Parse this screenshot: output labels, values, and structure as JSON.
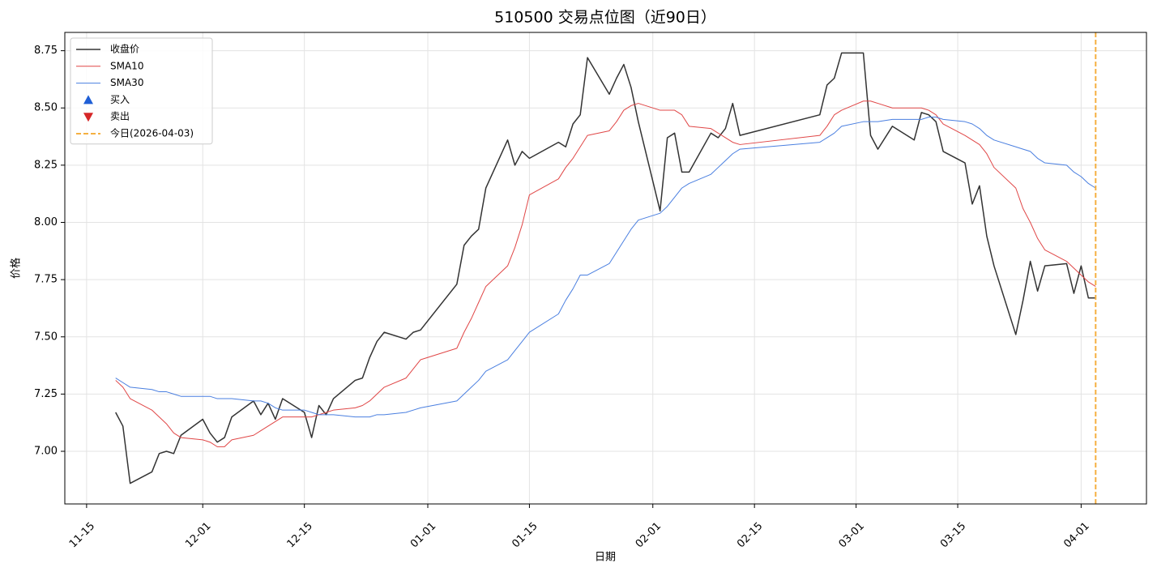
{
  "chart_data": {
    "type": "line",
    "title": "510500 交易点位图（近90日）",
    "xlabel": "日期",
    "ylabel": "价格",
    "x": [
      "11-19",
      "11-20",
      "11-21",
      "11-24",
      "11-25",
      "11-26",
      "11-27",
      "11-28",
      "12-01",
      "12-02",
      "12-03",
      "12-04",
      "12-05",
      "12-08",
      "12-09",
      "12-10",
      "12-11",
      "12-12",
      "12-15",
      "12-16",
      "12-17",
      "12-18",
      "12-19",
      "12-22",
      "12-23",
      "12-24",
      "12-25",
      "12-26",
      "12-29",
      "12-30",
      "12-31",
      "01-05",
      "01-06",
      "01-07",
      "01-08",
      "01-09",
      "01-12",
      "01-13",
      "01-14",
      "01-15",
      "01-19",
      "01-20",
      "01-21",
      "01-22",
      "01-23",
      "01-26",
      "01-27",
      "01-28",
      "01-29",
      "01-30",
      "02-02",
      "02-03",
      "02-04",
      "02-05",
      "02-06",
      "02-09",
      "02-10",
      "02-11",
      "02-12",
      "02-13",
      "02-24",
      "02-25",
      "02-26",
      "02-27",
      "03-02",
      "03-03",
      "03-04",
      "03-06",
      "03-09",
      "03-10",
      "03-11",
      "03-12",
      "03-13",
      "03-16",
      "03-17",
      "03-18",
      "03-19",
      "03-20",
      "03-23",
      "03-24",
      "03-25",
      "03-26",
      "03-27",
      "03-30",
      "03-31",
      "04-01",
      "04-02",
      "04-03"
    ],
    "series": [
      {
        "name": "收盘价",
        "color": "#333333",
        "width": 1.5,
        "values": [
          7.17,
          7.11,
          6.86,
          6.91,
          6.99,
          7.0,
          6.99,
          7.07,
          7.14,
          7.08,
          7.04,
          7.06,
          7.15,
          7.22,
          7.16,
          7.21,
          7.14,
          7.23,
          7.17,
          7.06,
          7.2,
          7.16,
          7.23,
          7.31,
          7.32,
          7.41,
          7.48,
          7.52,
          7.49,
          7.52,
          7.53,
          7.73,
          7.9,
          7.94,
          7.97,
          8.15,
          8.36,
          8.25,
          8.31,
          8.28,
          8.35,
          8.33,
          8.43,
          8.47,
          8.72,
          8.56,
          8.63,
          8.69,
          8.59,
          8.44,
          8.05,
          8.37,
          8.39,
          8.22,
          8.22,
          8.39,
          8.37,
          8.41,
          8.52,
          8.38,
          8.47,
          8.6,
          8.63,
          8.74,
          8.74,
          8.38,
          8.32,
          8.42,
          8.36,
          8.48,
          8.47,
          8.44,
          8.31,
          8.26,
          8.08,
          8.16,
          7.94,
          7.81,
          7.51,
          7.66,
          7.83,
          7.7,
          7.81,
          7.82,
          7.69,
          7.81,
          7.67,
          7.67
        ]
      },
      {
        "name": "SMA10",
        "color": "#e04646",
        "width": 1,
        "values": [
          7.31,
          7.28,
          7.23,
          7.18,
          7.15,
          7.12,
          7.08,
          7.06,
          7.05,
          7.04,
          7.02,
          7.02,
          7.05,
          7.07,
          7.09,
          7.11,
          7.13,
          7.15,
          7.15,
          7.15,
          7.16,
          7.17,
          7.18,
          7.19,
          7.2,
          7.22,
          7.25,
          7.28,
          7.32,
          7.36,
          7.4,
          7.45,
          7.52,
          7.58,
          7.65,
          7.72,
          7.81,
          7.89,
          7.99,
          8.12,
          8.19,
          8.24,
          8.28,
          8.33,
          8.38,
          8.4,
          8.44,
          8.49,
          8.51,
          8.52,
          8.49,
          8.49,
          8.49,
          8.47,
          8.42,
          8.41,
          8.39,
          8.37,
          8.35,
          8.34,
          8.38,
          8.42,
          8.47,
          8.49,
          8.53,
          8.53,
          8.52,
          8.5,
          8.5,
          8.5,
          8.49,
          8.47,
          8.43,
          8.38,
          8.36,
          8.34,
          8.3,
          8.24,
          8.15,
          8.06,
          8.0,
          7.93,
          7.88,
          7.83,
          7.8,
          7.77,
          7.74,
          7.72
        ]
      },
      {
        "name": "SMA30",
        "color": "#4a7fe0",
        "width": 1,
        "values": [
          7.32,
          7.3,
          7.28,
          7.27,
          7.26,
          7.26,
          7.25,
          7.24,
          7.24,
          7.24,
          7.23,
          7.23,
          7.23,
          7.22,
          7.22,
          7.21,
          7.19,
          7.18,
          7.18,
          7.17,
          7.16,
          7.16,
          7.16,
          7.15,
          7.15,
          7.15,
          7.16,
          7.16,
          7.17,
          7.18,
          7.19,
          7.22,
          7.25,
          7.28,
          7.31,
          7.35,
          7.4,
          7.44,
          7.48,
          7.52,
          7.6,
          7.66,
          7.71,
          7.77,
          7.77,
          7.82,
          7.87,
          7.92,
          7.97,
          8.01,
          8.04,
          8.07,
          8.11,
          8.15,
          8.17,
          8.21,
          8.24,
          8.27,
          8.3,
          8.32,
          8.35,
          8.37,
          8.39,
          8.42,
          8.44,
          8.44,
          8.44,
          8.45,
          8.45,
          8.45,
          8.46,
          8.46,
          8.45,
          8.44,
          8.43,
          8.41,
          8.38,
          8.36,
          8.33,
          8.32,
          8.31,
          8.28,
          8.26,
          8.25,
          8.22,
          8.2,
          8.17,
          8.15
        ]
      },
      {
        "name": "买入",
        "color": "#1f5fd6",
        "marker": "triangle-up",
        "values": [
          null,
          null,
          null,
          null,
          null,
          null,
          null,
          null,
          null,
          null,
          null,
          null,
          null,
          null,
          null,
          null,
          null,
          null,
          null,
          null,
          null,
          null,
          null,
          null,
          null,
          null,
          null,
          null,
          null,
          null,
          null,
          null,
          null,
          null,
          null,
          null,
          null,
          null,
          null,
          null,
          null,
          null,
          null,
          null,
          null,
          null,
          null,
          null,
          null,
          null,
          null,
          null,
          null,
          null,
          null,
          null,
          null,
          null,
          null,
          null,
          null,
          null,
          null,
          null,
          null,
          null,
          null,
          null,
          null,
          null,
          null,
          null,
          null,
          null,
          null,
          null,
          null,
          null,
          null,
          null,
          null,
          null,
          null,
          null,
          null,
          null,
          null,
          null
        ]
      },
      {
        "name": "卖出",
        "color": "#d62728",
        "marker": "triangle-down",
        "values": [
          null,
          null,
          null,
          null,
          null,
          null,
          null,
          null,
          null,
          null,
          null,
          null,
          null,
          null,
          null,
          null,
          null,
          null,
          null,
          null,
          null,
          null,
          null,
          null,
          null,
          null,
          null,
          null,
          null,
          null,
          null,
          null,
          null,
          null,
          null,
          null,
          null,
          null,
          null,
          null,
          null,
          null,
          null,
          null,
          null,
          null,
          null,
          null,
          null,
          null,
          null,
          null,
          null,
          null,
          null,
          null,
          null,
          null,
          null,
          null,
          null,
          null,
          null,
          null,
          null,
          null,
          null,
          null,
          null,
          null,
          null,
          null,
          null,
          null,
          null,
          null,
          null,
          null,
          null,
          null,
          null,
          null,
          null,
          null,
          null,
          null,
          null,
          null
        ]
      }
    ],
    "today": {
      "label": "今日(2026-04-03)",
      "x": "04-03",
      "color": "#f5b041"
    },
    "xlim": [
      "11-12",
      "04-10"
    ],
    "xticks": [
      "11-15",
      "12-01",
      "12-15",
      "01-01",
      "01-15",
      "02-01",
      "02-15",
      "03-01",
      "03-15",
      "04-01"
    ],
    "ylim": [
      6.77,
      8.83
    ],
    "yticks": [
      {
        "value": 7,
        "label": "7.00"
      },
      7.25,
      {
        "value": 7.5,
        "label": "7.50"
      },
      7.75,
      {
        "value": 8,
        "label": "8.00"
      },
      8.25,
      {
        "value": 8.5,
        "label": "8.50"
      },
      8.75
    ],
    "grid": true,
    "legend": "upper left"
  }
}
